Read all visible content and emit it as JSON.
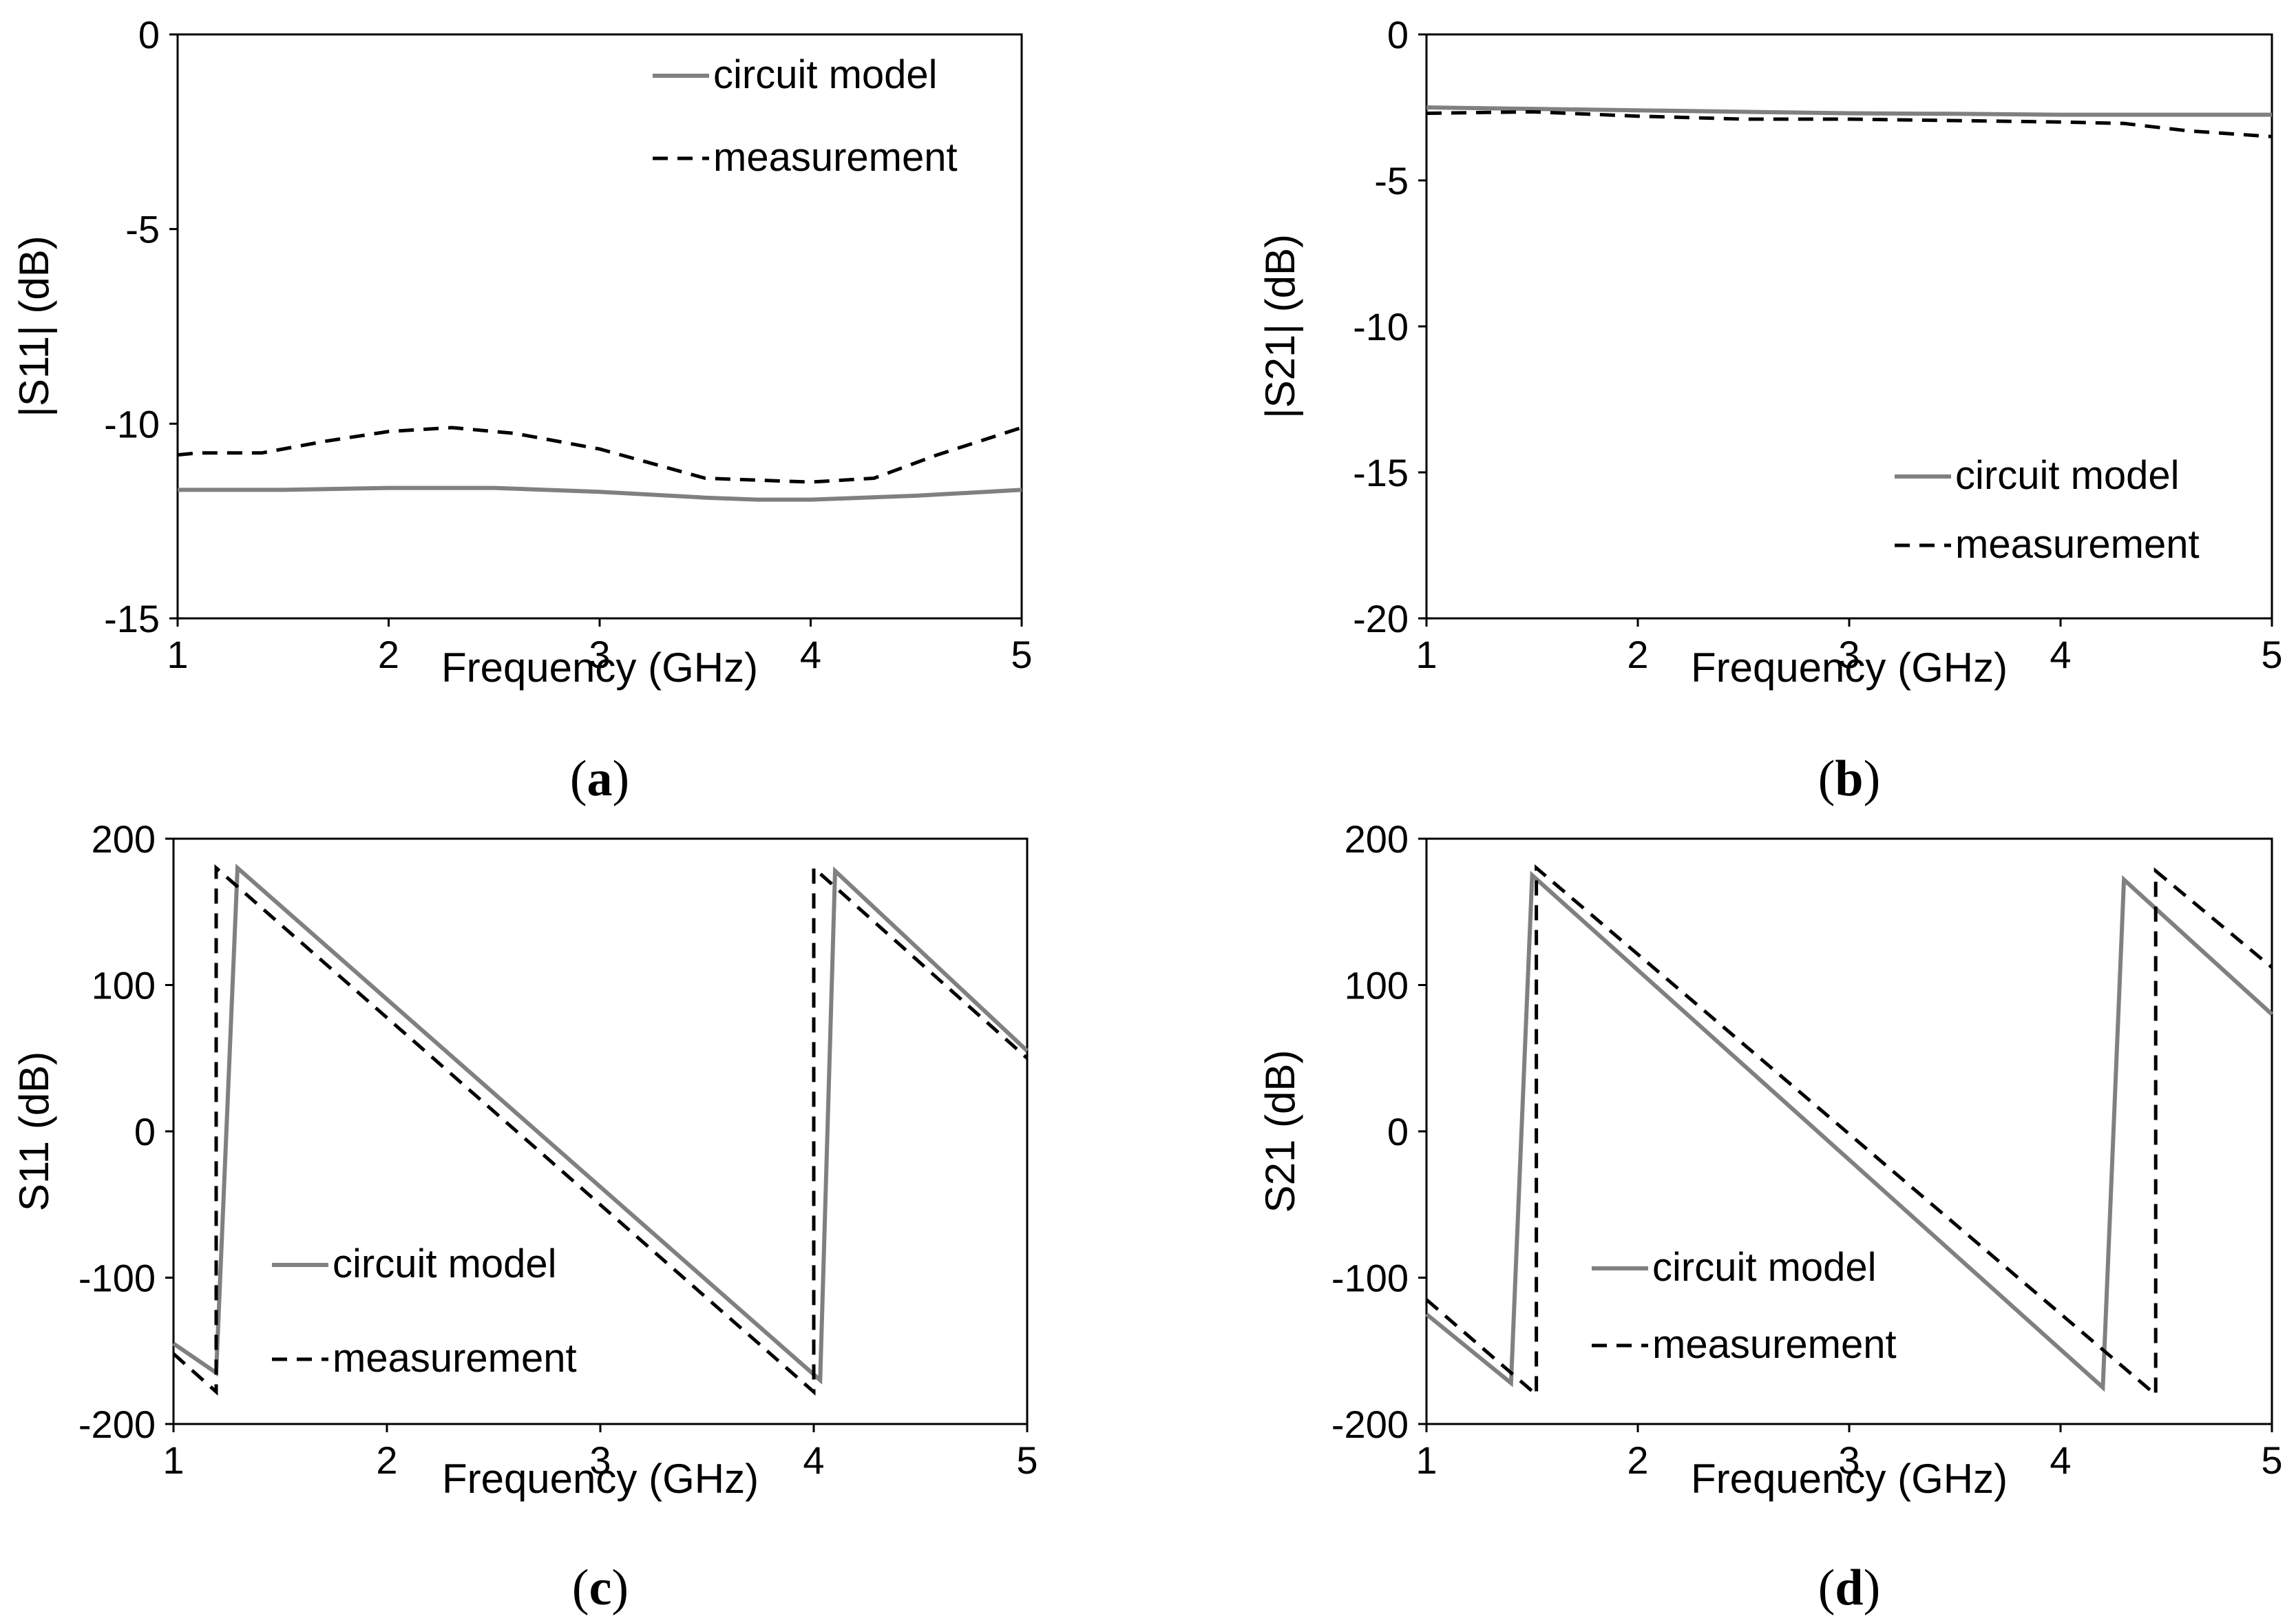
{
  "colors": {
    "model": "#808080",
    "measurement": "#000000",
    "axis": "#000000"
  },
  "chart_data": [
    {
      "panel": "a",
      "caption_open": "(",
      "caption_letter": "a",
      "caption_close": ")",
      "type": "line",
      "xlabel": "Frequency (GHz)",
      "ylabel": "|S11|  (dB)",
      "xlim": [
        1,
        5
      ],
      "ylim": [
        -15,
        0
      ],
      "xticks": [
        1,
        2,
        3,
        4,
        5
      ],
      "yticks": [
        0,
        -5,
        -10,
        -15
      ],
      "grid": false,
      "legend_position": "top-right",
      "series": [
        {
          "name": "circuit model",
          "style": "solid",
          "x": [
            1,
            1.5,
            2,
            2.5,
            3,
            3.5,
            3.75,
            4,
            4.5,
            5
          ],
          "y": [
            -11.7,
            -11.7,
            -11.65,
            -11.65,
            -11.75,
            -11.9,
            -11.95,
            -11.95,
            -11.85,
            -11.7
          ]
        },
        {
          "name": "measurement",
          "style": "dashed",
          "x": [
            1,
            1.1,
            1.4,
            1.7,
            2,
            2.3,
            2.6,
            3,
            3.5,
            4,
            4.3,
            4.6,
            5
          ],
          "y": [
            -10.8,
            -10.75,
            -10.75,
            -10.45,
            -10.2,
            -10.1,
            -10.25,
            -10.65,
            -11.4,
            -11.5,
            -11.4,
            -10.8,
            -10.1
          ]
        }
      ]
    },
    {
      "panel": "b",
      "caption_open": "(",
      "caption_letter": "b",
      "caption_close": ")",
      "type": "line",
      "xlabel": "Frequency (GHz)",
      "ylabel": "|S21|  (dB)",
      "xlim": [
        1,
        5
      ],
      "ylim": [
        -20,
        0
      ],
      "xticks": [
        1,
        2,
        3,
        4,
        5
      ],
      "yticks": [
        0,
        -5,
        -10,
        -15,
        -20
      ],
      "grid": false,
      "legend_position": "bottom-right",
      "series": [
        {
          "name": "circuit model",
          "style": "solid",
          "x": [
            1,
            1.5,
            2,
            2.5,
            3,
            3.5,
            4,
            4.5,
            5
          ],
          "y": [
            -2.5,
            -2.55,
            -2.6,
            -2.65,
            -2.7,
            -2.72,
            -2.75,
            -2.75,
            -2.75
          ]
        },
        {
          "name": "measurement",
          "style": "dashed",
          "x": [
            1,
            1.5,
            2,
            2.5,
            3,
            3.5,
            4,
            4.3,
            4.6,
            5
          ],
          "y": [
            -2.7,
            -2.65,
            -2.8,
            -2.9,
            -2.9,
            -2.95,
            -3.0,
            -3.05,
            -3.3,
            -3.5
          ]
        }
      ]
    },
    {
      "panel": "c",
      "caption_open": "(",
      "caption_letter": "c",
      "caption_close": ")",
      "type": "line",
      "xlabel": "Frequency (GHz)",
      "ylabel": "S11  (dB)",
      "xlim": [
        1,
        5
      ],
      "ylim": [
        -200,
        200
      ],
      "xticks": [
        1,
        2,
        3,
        4,
        5
      ],
      "yticks": [
        200,
        100,
        0,
        -100,
        -200
      ],
      "grid": false,
      "legend_position": "bottom-left",
      "series": [
        {
          "name": "circuit model",
          "style": "solid",
          "x": [
            1,
            1.2,
            1.3,
            4.03,
            4.1,
            5
          ],
          "y": [
            -145,
            -165,
            180,
            -170,
            178,
            55
          ]
        },
        {
          "name": "measurement",
          "style": "dashed",
          "x": [
            1,
            1.2,
            1.2,
            4.0,
            4.0,
            5
          ],
          "y": [
            -152,
            -178,
            180,
            -178,
            180,
            50
          ]
        }
      ]
    },
    {
      "panel": "d",
      "caption_open": "(",
      "caption_letter": "d",
      "caption_close": ")",
      "type": "line",
      "xlabel": "Frequency (GHz)",
      "ylabel": "S21  (dB)",
      "xlim": [
        1,
        5
      ],
      "ylim": [
        -200,
        200
      ],
      "xticks": [
        1,
        2,
        3,
        4,
        5
      ],
      "yticks": [
        200,
        100,
        0,
        -100,
        -200
      ],
      "grid": false,
      "legend_position": "bottom-left",
      "series": [
        {
          "name": "circuit model",
          "style": "solid",
          "x": [
            1,
            1.4,
            1.5,
            4.2,
            4.3,
            5
          ],
          "y": [
            -125,
            -172,
            175,
            -175,
            172,
            80
          ]
        },
        {
          "name": "measurement",
          "style": "dashed",
          "x": [
            1,
            1.52,
            1.52,
            4.45,
            4.45,
            5
          ],
          "y": [
            -115,
            -180,
            180,
            -180,
            178,
            112
          ]
        }
      ]
    }
  ]
}
